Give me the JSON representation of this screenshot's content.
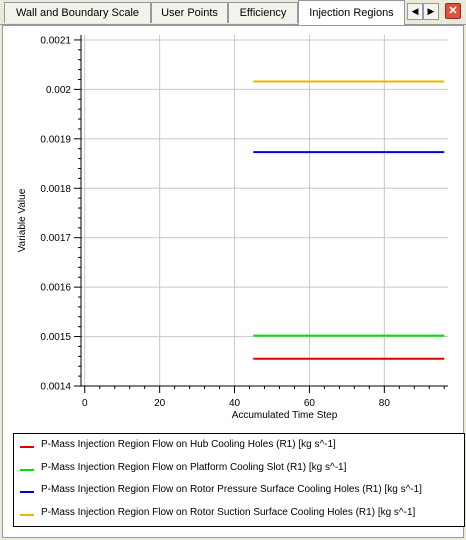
{
  "tabs": [
    {
      "label": "Wall and Boundary Scale",
      "active": false
    },
    {
      "label": "User Points",
      "active": false
    },
    {
      "label": "Efficiency",
      "active": false
    },
    {
      "label": "Injection Regions",
      "active": true
    }
  ],
  "nav": {
    "prev_symbol": "◀",
    "next_symbol": "▶",
    "close_symbol": "✕"
  },
  "chart_data": {
    "type": "line",
    "xlabel": "Accumulated Time Step",
    "ylabel": "Variable Value",
    "xlim": [
      -1,
      97
    ],
    "ylim": [
      0.0014,
      0.00211
    ],
    "xticks": [
      0,
      20,
      40,
      60,
      80
    ],
    "yticks": [
      0.0014,
      0.0015,
      0.0016,
      0.0017,
      0.0018,
      0.0019,
      0.002,
      0.0021
    ],
    "ytick_labels": [
      "0.0014",
      "0.0015",
      "0.0016",
      "0.0017",
      "0.0018",
      "0.0019",
      "0.002",
      "0.0021"
    ],
    "grid": true,
    "legend_position": "bottom",
    "series": [
      {
        "name": "P-Mass Injection Region Flow on Hub Cooling Holes (R1) [kg s^-1]",
        "color": "#e00000",
        "x": [
          45,
          96
        ],
        "y": [
          0.001455,
          0.001455
        ]
      },
      {
        "name": "P-Mass Injection Region Flow on Platform Cooling Slot (R1) [kg s^-1]",
        "color": "#00e000",
        "x": [
          45,
          96
        ],
        "y": [
          0.001502,
          0.001502
        ]
      },
      {
        "name": "P-Mass Injection Region Flow on Rotor Pressure Surface Cooling Holes (R1) [kg s^-1]",
        "color": "#0000d0",
        "x": [
          45,
          96
        ],
        "y": [
          0.001873,
          0.001873
        ]
      },
      {
        "name": "P-Mass Injection Region Flow on Rotor Suction Surface Cooling Holes (R1) [kg s^-1]",
        "color": "#f0b400",
        "x": [
          45,
          96
        ],
        "y": [
          0.002016,
          0.002016
        ]
      }
    ]
  }
}
